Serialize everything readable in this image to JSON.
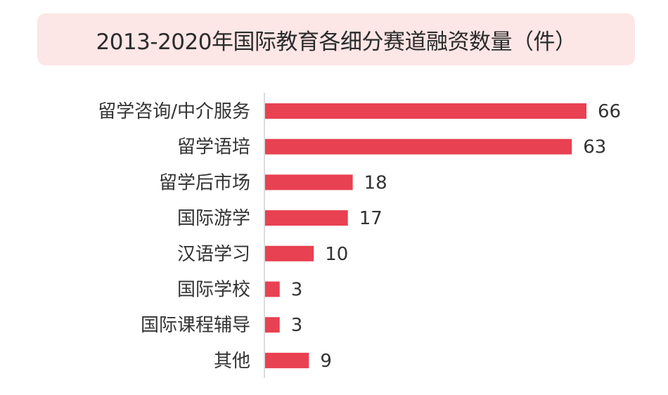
{
  "chart_data": {
    "type": "bar",
    "orientation": "horizontal",
    "title": "2013-2020年国际教育各细分赛道融资数量（件）",
    "categories": [
      "留学咨询/中介服务",
      "留学语培",
      "留学后市场",
      "国际游学",
      "汉语学习",
      "国际学校",
      "国际课程辅导",
      "其他"
    ],
    "values": [
      66,
      63,
      18,
      17,
      10,
      3,
      3,
      9
    ],
    "bar_color": "#e84152",
    "title_background": "#fde6e6",
    "grid": false,
    "legend": "none",
    "xlim": [
      0,
      66
    ]
  }
}
